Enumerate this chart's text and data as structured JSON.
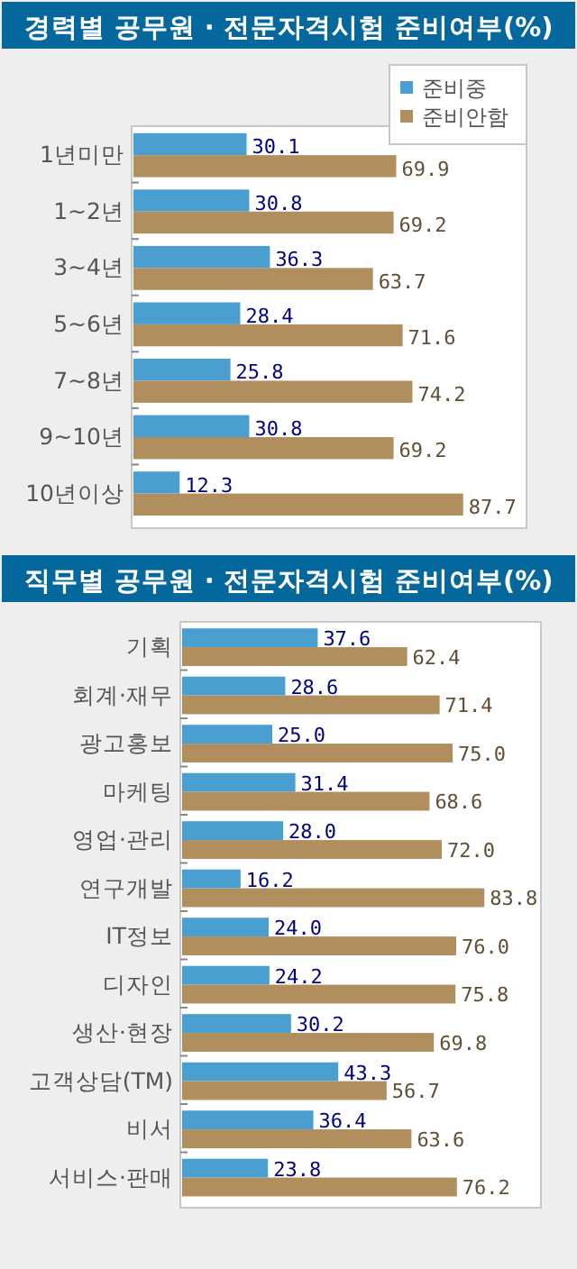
{
  "chart_data": [
    {
      "type": "bar",
      "orientation": "horizontal",
      "title": "경력별 공무원 · 전문자격시험 준비여부(%)",
      "categories": [
        "1년미만",
        "1~2년",
        "3~4년",
        "5~6년",
        "7~8년",
        "9~10년",
        "10년이상"
      ],
      "series": [
        {
          "name": "준비중",
          "color": "#4a9fd0",
          "values": [
            30.1,
            30.8,
            36.3,
            28.4,
            25.8,
            30.8,
            12.3
          ],
          "value_labels": [
            "30.1",
            "30.8",
            "36.3",
            "28.4",
            "25.8",
            "30.8",
            "12.3"
          ]
        },
        {
          "name": "준비안함",
          "color": "#b08e5e",
          "values": [
            69.9,
            69.2,
            63.7,
            71.6,
            74.2,
            69.2,
            87.7
          ],
          "value_labels": [
            "69.9",
            "69.2",
            "63.7",
            "71.6",
            "74.2",
            "69.2",
            "87.7"
          ]
        }
      ],
      "legend": "top right",
      "grid": false
    },
    {
      "type": "bar",
      "orientation": "horizontal",
      "title": "직무별 공무원 · 전문자격시험 준비여부(%)",
      "categories": [
        "기획",
        "회계·재무",
        "광고홍보",
        "마케팅",
        "영업·관리",
        "연구개발",
        "IT정보",
        "디자인",
        "생산·현장",
        "고객상담(TM)",
        "비서",
        "서비스·판매"
      ],
      "series": [
        {
          "color": "#4a9fd0",
          "values": [
            37.6,
            28.6,
            25.0,
            31.4,
            28.0,
            16.2,
            24.0,
            24.2,
            30.2,
            43.3,
            36.4,
            23.8
          ],
          "value_labels": [
            "37.6",
            "28.6",
            "25.0",
            "31.4",
            "28.0",
            "16.2",
            "24.0",
            "24.2",
            "30.2",
            "43.3",
            "36.4",
            "23.8"
          ]
        },
        {
          "color": "#b08e5e",
          "values": [
            62.4,
            71.4,
            75.0,
            68.6,
            72.0,
            83.8,
            76.0,
            75.8,
            69.8,
            56.7,
            63.6,
            76.2
          ],
          "value_labels": [
            "62.4",
            "71.4",
            "75.0",
            "68.6",
            "72.0",
            "83.8",
            "76.0",
            "75.8",
            "69.8",
            "56.7",
            "63.6",
            "76.2"
          ]
        }
      ],
      "grid": false
    }
  ]
}
